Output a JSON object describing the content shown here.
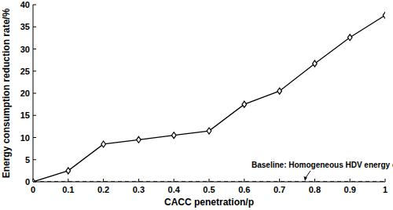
{
  "chart_data": {
    "type": "line",
    "x_label": "CACC penetration/p",
    "y_label": "Energy consumption reduction rate/%",
    "x": [
      0,
      0.1,
      0.2,
      0.3,
      0.4,
      0.5,
      0.6,
      0.7,
      0.8,
      0.9,
      1
    ],
    "series": [
      {
        "color": "#000000",
        "marker": "diamond",
        "line_style": "solid",
        "values": [
          0,
          2.5,
          8.5,
          9.5,
          10.5,
          11.5,
          17.5,
          20.5,
          26.7,
          32.6,
          37.6
        ]
      },
      {
        "name": "Baseline: Homogeneous HDV energy consumption",
        "color": "#000000",
        "line_style": "dashed",
        "values": [
          0,
          0,
          0,
          0,
          0,
          0,
          0,
          0,
          0,
          0,
          0
        ]
      }
    ],
    "xlim": [
      0,
      1
    ],
    "xticks": [
      0,
      0.1,
      0.2,
      0.3,
      0.4,
      0.5,
      0.6,
      0.7,
      0.8,
      0.9,
      1
    ],
    "ylim": [
      0,
      40
    ],
    "yticks": [
      0,
      5,
      10,
      15,
      20,
      25,
      30,
      35,
      40
    ],
    "grid": false
  }
}
